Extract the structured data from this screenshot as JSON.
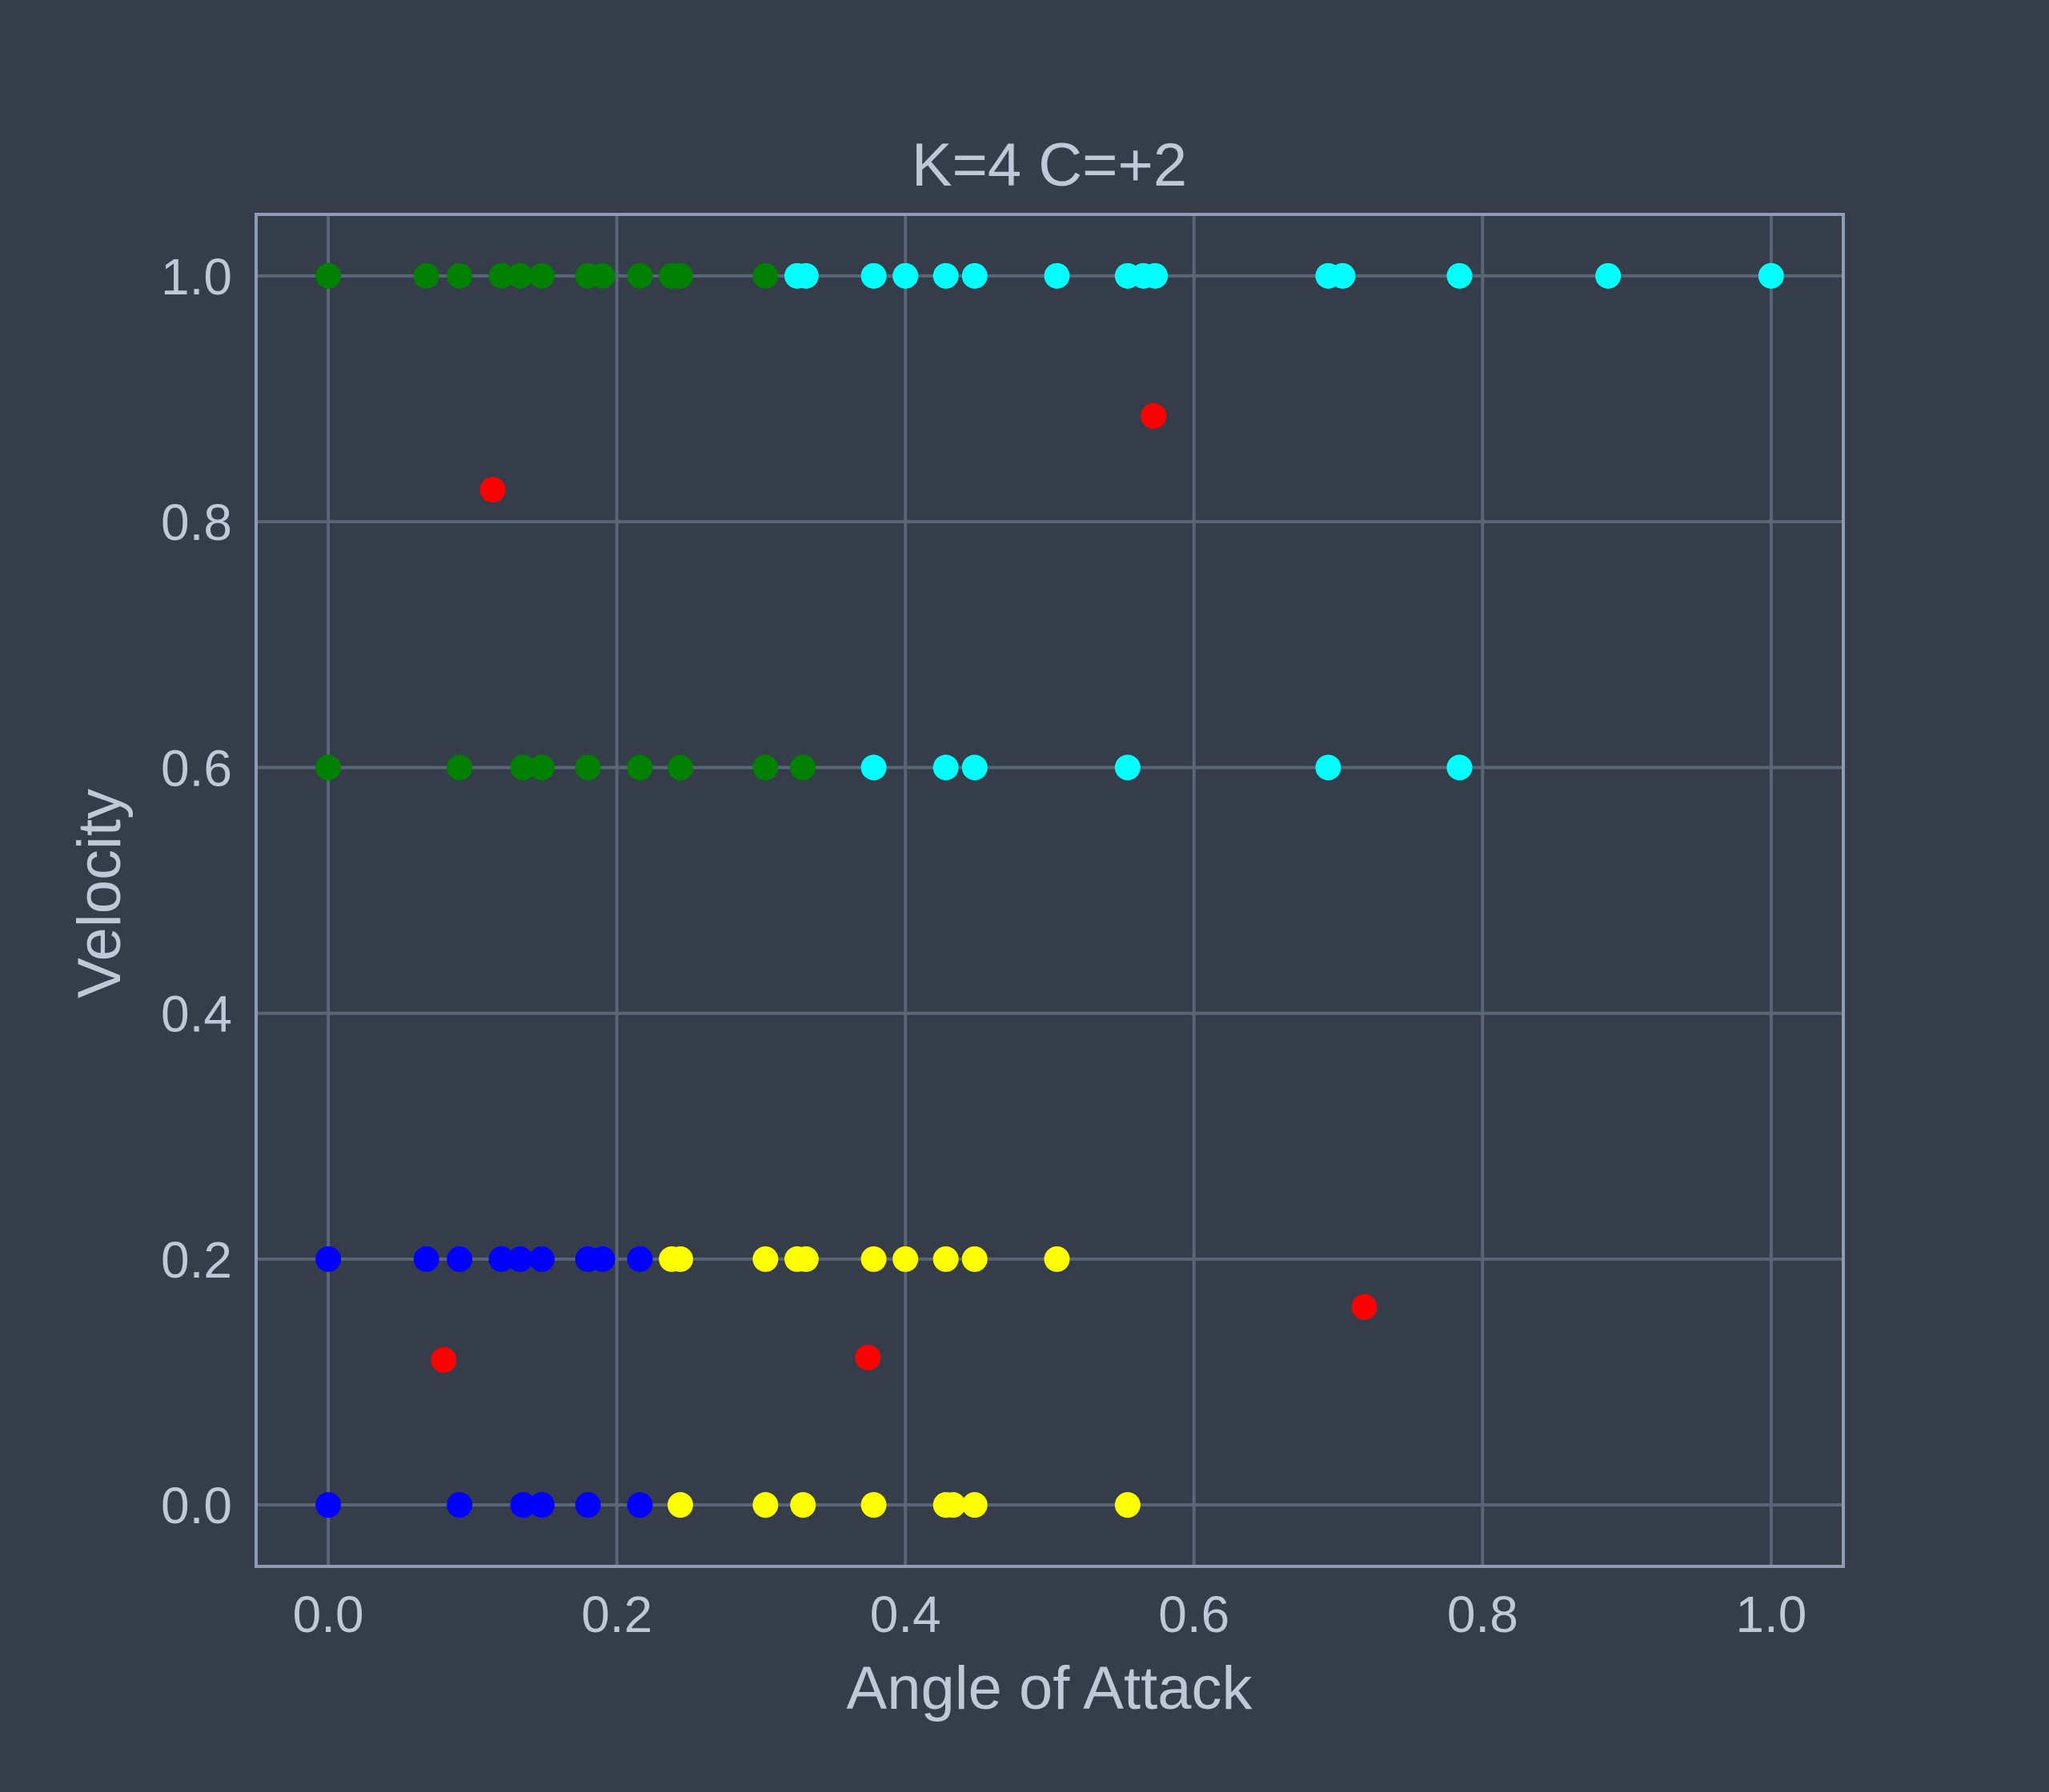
{
  "colors": {
    "background": "#363d4a",
    "grid": "#5a6578",
    "frame": "#8e9bb5",
    "text": "#c0c8d8"
  },
  "chart_data": {
    "type": "scatter",
    "title": "K=4 C=+2",
    "xlabel": "Angle of Attack",
    "ylabel": "Velocity",
    "xlim": [
      -0.05,
      1.05
    ],
    "ylim": [
      -0.05,
      1.05
    ],
    "xticks": [
      "0.0",
      "0.2",
      "0.4",
      "0.6",
      "0.8",
      "1.0"
    ],
    "yticks": [
      "0.0",
      "0.2",
      "0.4",
      "0.6",
      "0.8",
      "1.0"
    ],
    "grid": true,
    "series": [
      {
        "color": "#008000",
        "points": [
          [
            0.0,
            1.0
          ],
          [
            0.068,
            1.0
          ],
          [
            0.091,
            1.0
          ],
          [
            0.12,
            1.0
          ],
          [
            0.133,
            1.0
          ],
          [
            0.148,
            1.0
          ],
          [
            0.18,
            1.0
          ],
          [
            0.19,
            1.0
          ],
          [
            0.216,
            1.0
          ],
          [
            0.238,
            1.0
          ],
          [
            0.244,
            1.0
          ],
          [
            0.303,
            1.0
          ],
          [
            0.0,
            0.6
          ],
          [
            0.091,
            0.6
          ],
          [
            0.135,
            0.6
          ],
          [
            0.148,
            0.6
          ],
          [
            0.18,
            0.6
          ],
          [
            0.216,
            0.6
          ],
          [
            0.244,
            0.6
          ],
          [
            0.303,
            0.6
          ],
          [
            0.329,
            0.6
          ]
        ]
      },
      {
        "color": "#00ffff",
        "points": [
          [
            0.325,
            1.0
          ],
          [
            0.331,
            1.0
          ],
          [
            0.378,
            1.0
          ],
          [
            0.4,
            1.0
          ],
          [
            0.428,
            1.0
          ],
          [
            0.448,
            1.0
          ],
          [
            0.505,
            1.0
          ],
          [
            0.554,
            1.0
          ],
          [
            0.565,
            1.0
          ],
          [
            0.573,
            1.0
          ],
          [
            0.693,
            1.0
          ],
          [
            0.703,
            1.0
          ],
          [
            0.784,
            1.0
          ],
          [
            0.887,
            1.0
          ],
          [
            1.0,
            1.0
          ],
          [
            0.378,
            0.6
          ],
          [
            0.428,
            0.6
          ],
          [
            0.448,
            0.6
          ],
          [
            0.554,
            0.6
          ],
          [
            0.693,
            0.6
          ],
          [
            0.784,
            0.6
          ]
        ]
      },
      {
        "color": "#0000ff",
        "points": [
          [
            0.0,
            0.2
          ],
          [
            0.068,
            0.2
          ],
          [
            0.091,
            0.2
          ],
          [
            0.12,
            0.2
          ],
          [
            0.133,
            0.2
          ],
          [
            0.148,
            0.2
          ],
          [
            0.18,
            0.2
          ],
          [
            0.19,
            0.2
          ],
          [
            0.216,
            0.2
          ],
          [
            0.0,
            0.0
          ],
          [
            0.091,
            0.0
          ],
          [
            0.135,
            0.0
          ],
          [
            0.148,
            0.0
          ],
          [
            0.18,
            0.0
          ],
          [
            0.216,
            0.0
          ]
        ]
      },
      {
        "color": "#ffff00",
        "points": [
          [
            0.238,
            0.2
          ],
          [
            0.244,
            0.2
          ],
          [
            0.303,
            0.2
          ],
          [
            0.325,
            0.2
          ],
          [
            0.331,
            0.2
          ],
          [
            0.378,
            0.2
          ],
          [
            0.4,
            0.2
          ],
          [
            0.428,
            0.2
          ],
          [
            0.448,
            0.2
          ],
          [
            0.505,
            0.2
          ],
          [
            0.244,
            0.0
          ],
          [
            0.303,
            0.0
          ],
          [
            0.329,
            0.0
          ],
          [
            0.378,
            0.0
          ],
          [
            0.428,
            0.0
          ],
          [
            0.433,
            0.0
          ],
          [
            0.448,
            0.0
          ],
          [
            0.554,
            0.0
          ]
        ]
      },
      {
        "color": "#ff0000",
        "points": [
          [
            0.114,
            0.826
          ],
          [
            0.572,
            0.886
          ],
          [
            0.08,
            0.118
          ],
          [
            0.374,
            0.12
          ],
          [
            0.718,
            0.161
          ]
        ]
      }
    ]
  }
}
